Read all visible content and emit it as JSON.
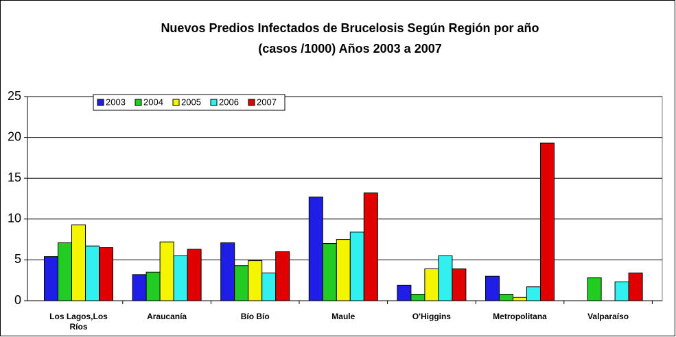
{
  "chart_data": {
    "type": "bar",
    "title": "Nuevos Predios Infectados de Brucelosis Según Región por año",
    "subtitle": "(casos /1000) Años 2003 a 2007",
    "categories": [
      "Los Lagos,Los Ríos",
      "Araucanía",
      "Bío Bío",
      "Maule",
      "O'Higgins",
      "Metropolitana",
      "Valparaíso"
    ],
    "series": [
      {
        "name": "2003",
        "color": "#1e1ee6",
        "values": [
          5.4,
          3.2,
          7.1,
          12.7,
          1.9,
          3.0,
          null
        ]
      },
      {
        "name": "2004",
        "color": "#22cc22",
        "values": [
          7.1,
          3.5,
          4.3,
          7.0,
          0.8,
          0.8,
          2.8
        ]
      },
      {
        "name": "2005",
        "color": "#f5f500",
        "values": [
          9.3,
          7.2,
          4.9,
          7.5,
          3.9,
          0.4,
          null
        ]
      },
      {
        "name": "2006",
        "color": "#33f0f0",
        "values": [
          6.7,
          5.5,
          3.4,
          8.4,
          5.5,
          1.7,
          2.3
        ]
      },
      {
        "name": "2007",
        "color": "#e00000",
        "values": [
          6.5,
          6.3,
          6.0,
          13.2,
          3.9,
          19.3,
          3.4
        ]
      }
    ],
    "ylim": [
      0,
      25
    ],
    "yticks": [
      0,
      5,
      10,
      15,
      20,
      25
    ],
    "grid": true,
    "legend": "top-left"
  }
}
